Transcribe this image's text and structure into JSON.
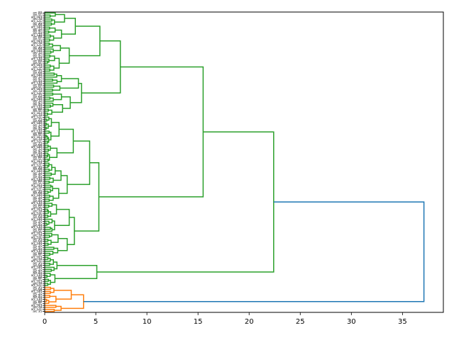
{
  "chart_data": {
    "type": "dendrogram",
    "orientation": "horizontal",
    "title": "",
    "xlabel": "",
    "ylabel": "",
    "xlim": [
      0,
      39
    ],
    "xticks": [
      "0",
      "5",
      "10",
      "15",
      "20",
      "25",
      "30",
      "35"
    ],
    "leaf_count": 150,
    "leaf_labels": [
      "arc 88",
      "arc 51",
      "arc 103",
      "arc 74",
      "arc 121",
      "arc 35",
      "arc 68",
      "arc 140",
      "arc 12",
      "arc 97",
      "arc 44",
      "arc 130"
    ],
    "clusters": [
      {
        "name": "",
        "color": "#2ca02c",
        "leaf_count": 137
      },
      {
        "name": "",
        "color": "#ff7f0e",
        "leaf_count": 13
      }
    ],
    "merges": [
      {
        "id": "green_a1",
        "height": 5.4,
        "color": "#2ca02c",
        "children": [
          "green_a1a",
          "green_a1b"
        ]
      },
      {
        "id": "green_a2",
        "height": 3.6,
        "color": "#2ca02c",
        "children": [
          "green_a2a",
          "green_a2b"
        ]
      },
      {
        "id": "green_a",
        "height": 7.4,
        "color": "#2ca02c",
        "children": [
          "green_a1",
          "green_a2"
        ]
      },
      {
        "id": "green_b1",
        "height": 4.4,
        "color": "#2ca02c",
        "children": [
          "green_b1a",
          "green_b1b"
        ]
      },
      {
        "id": "green_b2",
        "height": 2.9,
        "color": "#2ca02c",
        "children": [
          "green_b2a",
          "green_b2b"
        ]
      },
      {
        "id": "green_b",
        "height": 5.3,
        "color": "#2ca02c",
        "children": [
          "green_b1",
          "green_b2"
        ]
      },
      {
        "id": "green_ab",
        "height": 15.5,
        "color": "#2ca02c",
        "children": [
          "green_a",
          "green_b"
        ]
      },
      {
        "id": "green_c",
        "height": 5.1,
        "color": "#2ca02c",
        "children": [
          "green_c1",
          "green_c2"
        ]
      },
      {
        "id": "green_root",
        "height": 22.4,
        "color": "#2ca02c",
        "children": [
          "green_ab",
          "green_c"
        ]
      },
      {
        "id": "orange_1",
        "height": 2.6,
        "color": "#ff7f0e",
        "children": [
          "orange_1a",
          "orange_1b"
        ]
      },
      {
        "id": "orange_root",
        "height": 3.8,
        "color": "#ff7f0e",
        "children": [
          "orange_1",
          "orange_2"
        ]
      },
      {
        "id": "root",
        "height": 37.1,
        "color": "#1f77b4",
        "children": [
          "green_root",
          "orange_root"
        ]
      }
    ],
    "colors": {
      "green": "#2ca02c",
      "orange": "#ff7f0e",
      "blue": "#1f77b4"
    },
    "grid": false,
    "legend": "none"
  }
}
